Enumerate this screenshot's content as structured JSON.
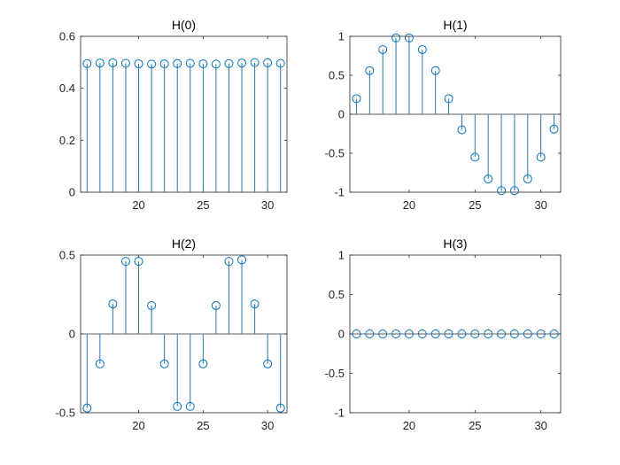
{
  "chart_data": [
    {
      "type": "stem",
      "title": "H(0)",
      "x": [
        16,
        17,
        18,
        19,
        20,
        21,
        22,
        23,
        24,
        25,
        26,
        27,
        28,
        29,
        30,
        31
      ],
      "values": [
        0.495,
        0.497,
        0.498,
        0.496,
        0.494,
        0.493,
        0.494,
        0.495,
        0.496,
        0.494,
        0.493,
        0.495,
        0.497,
        0.499,
        0.498,
        0.496
      ],
      "xlim": [
        15.5,
        31.5
      ],
      "ylim": [
        0,
        0.6
      ],
      "xticks": [
        20,
        25,
        30
      ],
      "yticks": [
        0,
        0.2,
        0.4,
        0.6
      ],
      "xticklabels": [
        "20",
        "25",
        "30"
      ],
      "yticklabels": [
        "0",
        "0.2",
        "0.4",
        "0.6"
      ],
      "color": "#0072bd"
    },
    {
      "type": "stem",
      "title": "H(1)",
      "x": [
        16,
        17,
        18,
        19,
        20,
        21,
        22,
        23,
        24,
        25,
        26,
        27,
        28,
        29,
        30,
        31
      ],
      "values": [
        0.2,
        0.56,
        0.83,
        0.98,
        0.98,
        0.83,
        0.56,
        0.2,
        -0.2,
        -0.55,
        -0.83,
        -0.98,
        -0.98,
        -0.83,
        -0.55,
        -0.19
      ],
      "xlim": [
        15.5,
        31.5
      ],
      "ylim": [
        -1,
        1
      ],
      "xticks": [
        20,
        25,
        30
      ],
      "yticks": [
        -1,
        -0.5,
        0,
        0.5,
        1
      ],
      "xticklabels": [
        "20",
        "25",
        "30"
      ],
      "yticklabels": [
        "-1",
        "-0.5",
        "0",
        "0.5",
        "1"
      ],
      "color": "#0072bd"
    },
    {
      "type": "stem",
      "title": "H(2)",
      "x": [
        16,
        17,
        18,
        19,
        20,
        21,
        22,
        23,
        24,
        25,
        26,
        27,
        28,
        29,
        30,
        31
      ],
      "values": [
        -0.47,
        -0.19,
        0.19,
        0.46,
        0.46,
        0.18,
        -0.19,
        -0.46,
        -0.46,
        -0.19,
        0.18,
        0.46,
        0.47,
        0.19,
        -0.19,
        -0.47
      ],
      "xlim": [
        15.5,
        31.5
      ],
      "ylim": [
        -0.5,
        0.5
      ],
      "xticks": [
        20,
        25,
        30
      ],
      "yticks": [
        -0.5,
        0,
        0.5
      ],
      "xticklabels": [
        "20",
        "25",
        "30"
      ],
      "yticklabels": [
        "-0.5",
        "0",
        "0.5"
      ],
      "color": "#0072bd"
    },
    {
      "type": "stem",
      "title": "H(3)",
      "x": [
        16,
        17,
        18,
        19,
        20,
        21,
        22,
        23,
        24,
        25,
        26,
        27,
        28,
        29,
        30,
        31
      ],
      "values": [
        0,
        0,
        0,
        0,
        0,
        0,
        0,
        0,
        0,
        0,
        0,
        0,
        0,
        0,
        0,
        0
      ],
      "xlim": [
        15.5,
        31.5
      ],
      "ylim": [
        -1,
        1
      ],
      "xticks": [
        20,
        25,
        30
      ],
      "yticks": [
        -1,
        -0.5,
        0,
        0.5,
        1
      ],
      "xticklabels": [
        "20",
        "25",
        "30"
      ],
      "yticklabels": [
        "-1",
        "-0.5",
        "0",
        "0.5",
        "1"
      ],
      "color": "#0072bd"
    }
  ]
}
